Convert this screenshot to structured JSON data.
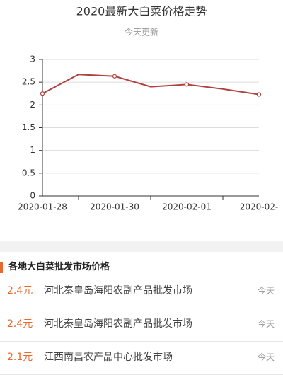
{
  "chart_data": {
    "type": "line",
    "title": "2020最新大白菜价格走势",
    "subtitle": "今天更新",
    "categories": [
      "2020-01-28",
      null,
      "2020-01-30",
      null,
      "2020-02-01",
      null,
      "2020-02-"
    ],
    "series": [
      {
        "color": "#b0413e",
        "values": [
          2.25,
          2.67,
          2.63,
          2.4,
          2.45,
          2.35,
          2.23
        ]
      }
    ],
    "ylim": [
      0,
      3
    ],
    "yticks": [
      0,
      0.5,
      1,
      1.5,
      2,
      2.5,
      3
    ],
    "grid": true
  },
  "list": {
    "title": "各地大白菜批发市场价格",
    "items": [
      {
        "price": "2.4元",
        "market": "河北秦皇岛海阳农副产品批发市场",
        "date": "今天"
      },
      {
        "price": "2.4元",
        "market": "河北秦皇岛海阳农副产品批发市场",
        "date": "今天"
      },
      {
        "price": "2.1元",
        "market": "江西南昌农产品中心批发市场",
        "date": "今天"
      }
    ]
  }
}
